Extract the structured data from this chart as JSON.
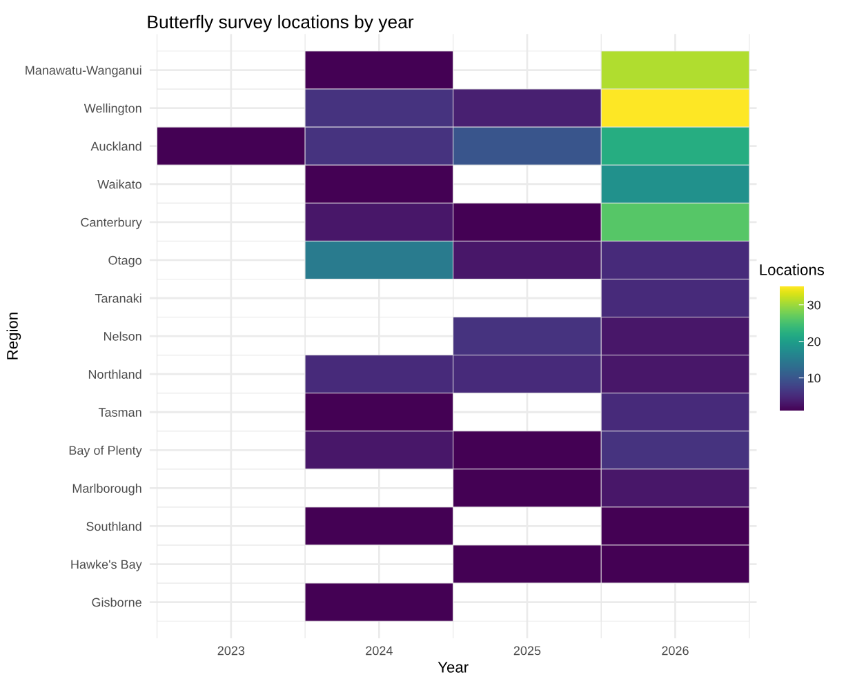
{
  "chart_data": {
    "type": "heatmap",
    "title": "Butterfly survey locations by year",
    "xlabel": "Year",
    "ylabel": "Region",
    "clabel": "Locations",
    "categories": [
      "2023",
      "2024",
      "2025",
      "2026"
    ],
    "y_categories": [
      "Manawatu-Wanganui",
      "Wellington",
      "Auckland",
      "Waikato",
      "Canterbury",
      "Otago",
      "Taranaki",
      "Nelson",
      "Northland",
      "Tasman",
      "Bay of Plenty",
      "Marlborough",
      "Southland",
      "Hawke's Bay",
      "Gisborne"
    ],
    "cells": [
      [
        null,
        1,
        null,
        31
      ],
      [
        null,
        6,
        4,
        35
      ],
      [
        1,
        6,
        10,
        22
      ],
      [
        null,
        1,
        null,
        18
      ],
      [
        null,
        3,
        1,
        26
      ],
      [
        null,
        15,
        3,
        5
      ],
      [
        null,
        null,
        null,
        5
      ],
      [
        null,
        null,
        6,
        3
      ],
      [
        null,
        5,
        5,
        3
      ],
      [
        null,
        1,
        null,
        5
      ],
      [
        null,
        3,
        1,
        6
      ],
      [
        null,
        null,
        1,
        3
      ],
      [
        null,
        1,
        null,
        1
      ],
      [
        null,
        null,
        1,
        1
      ],
      [
        null,
        1,
        null,
        null
      ]
    ],
    "clim": [
      1,
      35
    ],
    "cticks": [
      10,
      20,
      30
    ],
    "grid": true
  }
}
